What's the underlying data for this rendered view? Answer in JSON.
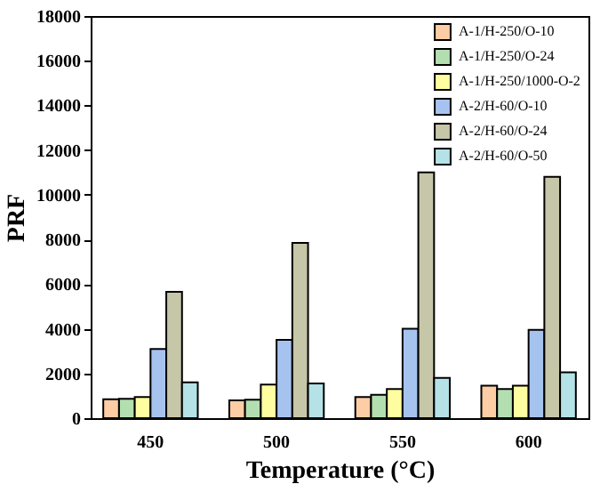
{
  "chart_data": {
    "type": "bar",
    "xlabel": "Temperature (°C)",
    "ylabel": "PRF",
    "categories": [
      "450",
      "500",
      "550",
      "600"
    ],
    "series": [
      {
        "name": "A-1/H-250/O-10",
        "color": "#fdcda5",
        "values": [
          850,
          800,
          950,
          1450
        ]
      },
      {
        "name": "A-1/H-250/O-24",
        "color": "#b3dfb0",
        "values": [
          870,
          830,
          1050,
          1300
        ]
      },
      {
        "name": "A-1/H-250/1000-O-2",
        "color": "#fefea0",
        "values": [
          950,
          1500,
          1300,
          1450
        ]
      },
      {
        "name": "A-2/H-60/O-10",
        "color": "#a6c3f0",
        "values": [
          3100,
          3500,
          4000,
          3950
        ]
      },
      {
        "name": "A-2/H-60/O-24",
        "color": "#c6c6a8",
        "values": [
          5650,
          7850,
          11000,
          10800
        ]
      },
      {
        "name": "A-2/H-60/O-50",
        "color": "#b4e2e6",
        "values": [
          1600,
          1550,
          1800,
          2050
        ]
      }
    ],
    "ylim": [
      0,
      18000
    ],
    "yticks": [
      0,
      2000,
      4000,
      6000,
      8000,
      10000,
      12000,
      14000,
      16000,
      18000
    ],
    "grid": false,
    "legend": "top right"
  }
}
